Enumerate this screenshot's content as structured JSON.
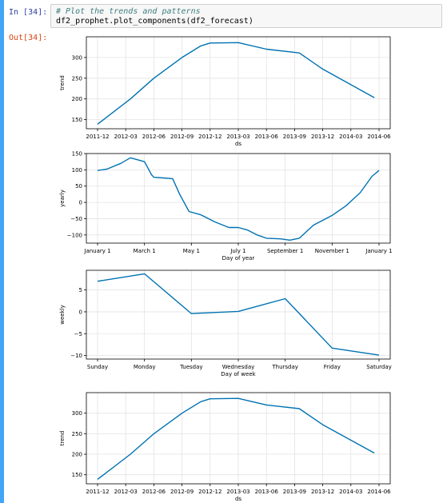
{
  "cell": {
    "in_prompt": "In [34]:",
    "out_prompt": "Out[34]:",
    "comment": "# Plot the trends and patterns",
    "code": "df2_prophet.plot_components(df2_forecast)"
  },
  "chart_data": [
    {
      "type": "line",
      "xlabel": "ds",
      "ylabel": "trend",
      "x_ticks": [
        "2011-12",
        "2012-03",
        "2012-06",
        "2012-09",
        "2012-12",
        "2013-03",
        "2013-06",
        "2013-09",
        "2013-12",
        "2014-03",
        "2014-06"
      ],
      "y_ticks": [
        150,
        200,
        250,
        300
      ],
      "ylim": [
        128,
        350
      ],
      "x": [
        0,
        3.5,
        6,
        9,
        11,
        12,
        15,
        18,
        21.5,
        24,
        29.5
      ],
      "y": [
        139,
        200,
        250,
        300,
        328,
        335,
        336,
        320,
        311,
        272,
        203
      ],
      "grid": true,
      "color": "#0072b2"
    },
    {
      "type": "line",
      "xlabel": "Day of year",
      "ylabel": "yearly",
      "x_ticks": [
        "January 1",
        "March 1",
        "May 1",
        "July 1",
        "September 1",
        "November 1",
        "January 1"
      ],
      "y_ticks": [
        -100,
        -50,
        0,
        50,
        100,
        150
      ],
      "ylim": [
        -125,
        150
      ],
      "x": [
        0,
        0.2,
        0.5,
        0.7,
        1.0,
        1.15,
        1.2,
        1.4,
        1.6,
        1.75,
        1.95,
        2.2,
        2.5,
        2.8,
        3.0,
        3.2,
        3.4,
        3.6,
        3.9,
        4.1,
        4.3,
        4.6,
        5.0,
        5.3,
        5.6,
        5.85,
        6.0
      ],
      "y": [
        98,
        102,
        120,
        137,
        125,
        85,
        77,
        75,
        73,
        25,
        -28,
        -38,
        -60,
        -77,
        -77,
        -85,
        -100,
        -110,
        -112,
        -116,
        -110,
        -70,
        -40,
        -10,
        30,
        80,
        98
      ],
      "grid": true,
      "color": "#0072b2"
    },
    {
      "type": "line",
      "xlabel": "Day of week",
      "ylabel": "weekly",
      "x_ticks": [
        "Sunday",
        "Monday",
        "Tuesday",
        "Wednesday",
        "Thursday",
        "Friday",
        "Saturday"
      ],
      "y_ticks": [
        -10,
        -5,
        0,
        5
      ],
      "ylim": [
        -10.8,
        9.5
      ],
      "x": [
        0,
        1,
        2,
        3,
        4,
        5,
        6
      ],
      "y": [
        7,
        8.7,
        -0.4,
        0.1,
        3,
        -8.3,
        -9.9
      ],
      "grid": true,
      "color": "#0072b2"
    },
    {
      "type": "line",
      "xlabel": "ds",
      "ylabel": "trend",
      "x_ticks": [
        "2011-12",
        "2012-03",
        "2012-06",
        "2012-09",
        "2012-12",
        "2013-03",
        "2013-06",
        "2013-09",
        "2013-12",
        "2014-03",
        "2014-06"
      ],
      "y_ticks": [
        150,
        200,
        250,
        300
      ],
      "ylim": [
        128,
        350
      ],
      "x": [
        0,
        3.5,
        6,
        9,
        11,
        12,
        15,
        18,
        21.5,
        24,
        29.5
      ],
      "y": [
        139,
        200,
        250,
        300,
        328,
        335,
        336,
        320,
        311,
        272,
        203
      ],
      "grid": true,
      "color": "#0072b2"
    }
  ]
}
